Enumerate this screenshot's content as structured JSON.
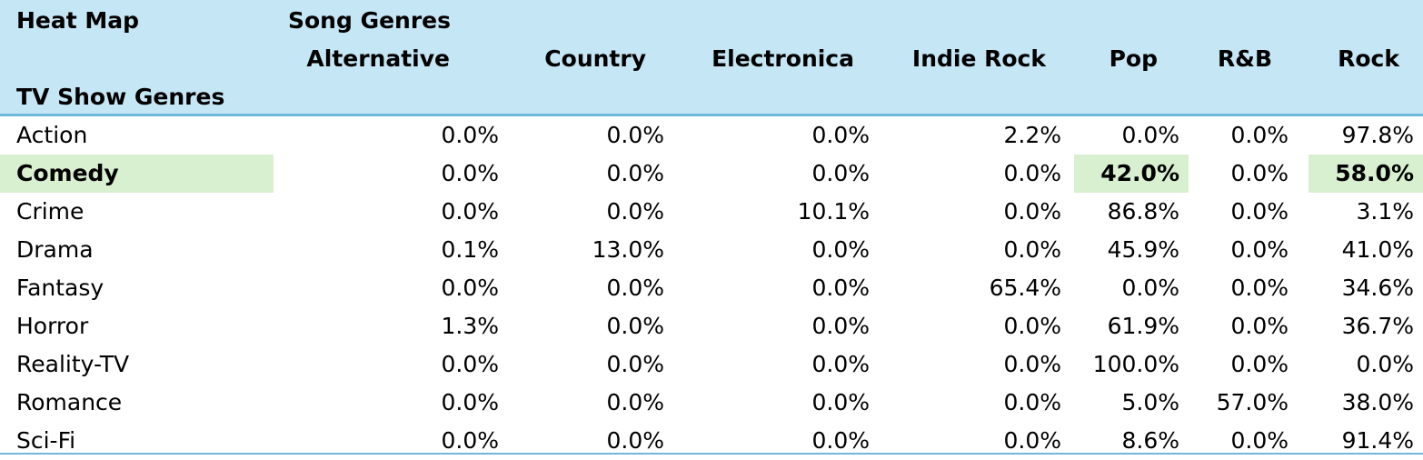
{
  "header": {
    "title": "Heat Map",
    "col_group": "Song Genres",
    "row_group": "TV Show Genres",
    "columns": [
      "Alternative",
      "Country",
      "Electronica",
      "Indie Rock",
      "Pop",
      "R&B",
      "Rock"
    ]
  },
  "rows": [
    {
      "label": "Action",
      "values": [
        "0.0%",
        "0.0%",
        "0.0%",
        "2.2%",
        "0.0%",
        "0.0%",
        "97.8%"
      ]
    },
    {
      "label": "Comedy",
      "values": [
        "0.0%",
        "0.0%",
        "0.0%",
        "0.0%",
        "42.0%",
        "0.0%",
        "58.0%"
      ]
    },
    {
      "label": "Crime",
      "values": [
        "0.0%",
        "0.0%",
        "10.1%",
        "0.0%",
        "86.8%",
        "0.0%",
        "3.1%"
      ]
    },
    {
      "label": "Drama",
      "values": [
        "0.1%",
        "13.0%",
        "0.0%",
        "0.0%",
        "45.9%",
        "0.0%",
        "41.0%"
      ]
    },
    {
      "label": "Fantasy",
      "values": [
        "0.0%",
        "0.0%",
        "0.0%",
        "65.4%",
        "0.0%",
        "0.0%",
        "34.6%"
      ]
    },
    {
      "label": "Horror",
      "values": [
        "1.3%",
        "0.0%",
        "0.0%",
        "0.0%",
        "61.9%",
        "0.0%",
        "36.7%"
      ]
    },
    {
      "label": "Reality-TV",
      "values": [
        "0.0%",
        "0.0%",
        "0.0%",
        "0.0%",
        "100.0%",
        "0.0%",
        "0.0%"
      ]
    },
    {
      "label": "Romance",
      "values": [
        "0.0%",
        "0.0%",
        "0.0%",
        "0.0%",
        "5.0%",
        "57.0%",
        "38.0%"
      ]
    },
    {
      "label": "Sci-Fi",
      "values": [
        "0.0%",
        "0.0%",
        "0.0%",
        "0.0%",
        "8.6%",
        "0.0%",
        "91.4%"
      ]
    }
  ],
  "highlights": [
    {
      "row": "Comedy",
      "columns": [
        "Pop",
        "Rock"
      ]
    }
  ],
  "colors": {
    "header_bg": "#c5e6f5",
    "header_rule": "#6fb8dc",
    "highlight_bg": "#d8f0d0"
  }
}
